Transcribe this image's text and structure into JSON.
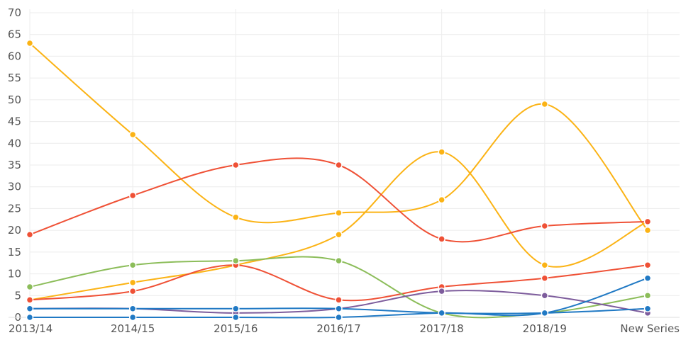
{
  "chart_data": {
    "type": "line",
    "title": "",
    "xlabel": "",
    "ylabel": "",
    "categories": [
      "2013/14",
      "2014/15",
      "2015/16",
      "2016/17",
      "2017/18",
      "2018/19",
      "New Series"
    ],
    "ylim": [
      0,
      70
    ],
    "yticks": [
      0,
      5,
      10,
      15,
      20,
      25,
      30,
      35,
      40,
      45,
      50,
      55,
      60,
      65,
      70
    ],
    "grid": true,
    "smooth": true,
    "legend": "none",
    "series": [
      {
        "color": "#fbb315",
        "values": [
          63,
          42,
          23,
          24,
          27,
          49,
          20
        ]
      },
      {
        "color": "#fbb315",
        "values": [
          4,
          8,
          12,
          19,
          38,
          12,
          22
        ]
      },
      {
        "color": "#ef5136",
        "values": [
          19,
          28,
          35,
          35,
          18,
          21,
          22
        ]
      },
      {
        "color": "#ef5136",
        "values": [
          4,
          6,
          12,
          4,
          7,
          9,
          12
        ]
      },
      {
        "color": "#8cbd5a",
        "values": [
          7,
          12,
          13,
          13,
          1,
          1,
          5
        ]
      },
      {
        "color": "#7d5c9c",
        "values": [
          2,
          2,
          1,
          2,
          6,
          5,
          1
        ]
      },
      {
        "color": "#2079c4",
        "values": [
          0,
          0,
          0,
          0,
          1,
          1,
          9
        ]
      },
      {
        "color": "#2079c4",
        "values": [
          2,
          2,
          2,
          2,
          1,
          1,
          2
        ]
      }
    ]
  }
}
